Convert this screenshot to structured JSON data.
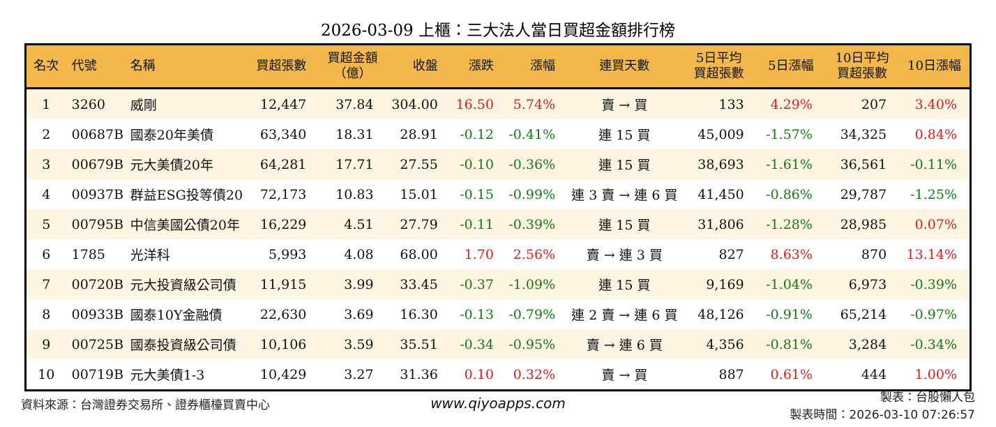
{
  "title": "2026-03-09 上櫃：三大法人當日買超金額排行榜",
  "colors": {
    "header_bg": "#F2B84B",
    "row_alt_bg": "#FDF5E1",
    "up_red": "#D02020",
    "down_green": "#157815",
    "border": "#000000"
  },
  "table": {
    "columns": [
      {
        "key": "rank",
        "label": "名次",
        "align": "center"
      },
      {
        "key": "code",
        "label": "代號",
        "align": "left"
      },
      {
        "key": "name",
        "label": "名稱",
        "align": "left"
      },
      {
        "key": "vol",
        "label": "買超張數",
        "align": "right"
      },
      {
        "key": "amount",
        "label": "買超金額\n（億）",
        "align": "right"
      },
      {
        "key": "close",
        "label": "收盤",
        "align": "right"
      },
      {
        "key": "chg",
        "label": "漲跌",
        "align": "right"
      },
      {
        "key": "chgpct",
        "label": "漲幅",
        "align": "right"
      },
      {
        "key": "streak",
        "label": "連買天數",
        "align": "center"
      },
      {
        "key": "avg5",
        "label": "5日平均\n買超張數",
        "align": "right"
      },
      {
        "key": "pct5",
        "label": "5日漲幅",
        "align": "right"
      },
      {
        "key": "avg10",
        "label": "10日平均\n買超張數",
        "align": "right"
      },
      {
        "key": "pct10",
        "label": "10日漲幅",
        "align": "right"
      }
    ],
    "rows": [
      [
        {
          "t": "1"
        },
        {
          "t": "3260"
        },
        {
          "t": "威剛"
        },
        {
          "t": "12,447"
        },
        {
          "t": "37.84"
        },
        {
          "t": "304.00"
        },
        {
          "t": "16.50",
          "c": "up"
        },
        {
          "t": "5.74%",
          "c": "up"
        },
        {
          "t": "賣 → 買"
        },
        {
          "t": "133"
        },
        {
          "t": "4.29%",
          "c": "up"
        },
        {
          "t": "207"
        },
        {
          "t": "3.40%",
          "c": "up"
        }
      ],
      [
        {
          "t": "2"
        },
        {
          "t": "00687B"
        },
        {
          "t": "國泰20年美債"
        },
        {
          "t": "63,340"
        },
        {
          "t": "18.31"
        },
        {
          "t": "28.91"
        },
        {
          "t": "-0.12",
          "c": "down"
        },
        {
          "t": "-0.41%",
          "c": "down"
        },
        {
          "t": "連 15 買"
        },
        {
          "t": "45,009"
        },
        {
          "t": "-1.57%",
          "c": "down"
        },
        {
          "t": "34,325"
        },
        {
          "t": "0.84%",
          "c": "up"
        }
      ],
      [
        {
          "t": "3"
        },
        {
          "t": "00679B"
        },
        {
          "t": "元大美債20年"
        },
        {
          "t": "64,281"
        },
        {
          "t": "17.71"
        },
        {
          "t": "27.55"
        },
        {
          "t": "-0.10",
          "c": "down"
        },
        {
          "t": "-0.36%",
          "c": "down"
        },
        {
          "t": "連 15 買"
        },
        {
          "t": "38,693"
        },
        {
          "t": "-1.61%",
          "c": "down"
        },
        {
          "t": "36,561"
        },
        {
          "t": "-0.11%",
          "c": "down"
        }
      ],
      [
        {
          "t": "4"
        },
        {
          "t": "00937B"
        },
        {
          "t": "群益ESG投等債20"
        },
        {
          "t": "72,173"
        },
        {
          "t": "10.83"
        },
        {
          "t": "15.01"
        },
        {
          "t": "-0.15",
          "c": "down"
        },
        {
          "t": "-0.99%",
          "c": "down"
        },
        {
          "t": "連 3 賣 → 連 6 買"
        },
        {
          "t": "41,450"
        },
        {
          "t": "-0.86%",
          "c": "down"
        },
        {
          "t": "29,787"
        },
        {
          "t": "-1.25%",
          "c": "down"
        }
      ],
      [
        {
          "t": "5"
        },
        {
          "t": "00795B"
        },
        {
          "t": "中信美國公債20年"
        },
        {
          "t": "16,229"
        },
        {
          "t": "4.51"
        },
        {
          "t": "27.79"
        },
        {
          "t": "-0.11",
          "c": "down"
        },
        {
          "t": "-0.39%",
          "c": "down"
        },
        {
          "t": "連 15 買"
        },
        {
          "t": "31,806"
        },
        {
          "t": "-1.28%",
          "c": "down"
        },
        {
          "t": "28,985"
        },
        {
          "t": "0.07%",
          "c": "up"
        }
      ],
      [
        {
          "t": "6"
        },
        {
          "t": "1785"
        },
        {
          "t": "光洋科"
        },
        {
          "t": "5,993"
        },
        {
          "t": "4.08"
        },
        {
          "t": "68.00"
        },
        {
          "t": "1.70",
          "c": "up"
        },
        {
          "t": "2.56%",
          "c": "up"
        },
        {
          "t": "賣 → 連 3 買"
        },
        {
          "t": "827"
        },
        {
          "t": "8.63%",
          "c": "up"
        },
        {
          "t": "870"
        },
        {
          "t": "13.14%",
          "c": "up"
        }
      ],
      [
        {
          "t": "7"
        },
        {
          "t": "00720B"
        },
        {
          "t": "元大投資級公司債"
        },
        {
          "t": "11,915"
        },
        {
          "t": "3.99"
        },
        {
          "t": "33.45"
        },
        {
          "t": "-0.37",
          "c": "down"
        },
        {
          "t": "-1.09%",
          "c": "down"
        },
        {
          "t": "連 15 買"
        },
        {
          "t": "9,169"
        },
        {
          "t": "-1.04%",
          "c": "down"
        },
        {
          "t": "6,973"
        },
        {
          "t": "-0.39%",
          "c": "down"
        }
      ],
      [
        {
          "t": "8"
        },
        {
          "t": "00933B"
        },
        {
          "t": "國泰10Y金融債"
        },
        {
          "t": "22,630"
        },
        {
          "t": "3.69"
        },
        {
          "t": "16.30"
        },
        {
          "t": "-0.13",
          "c": "down"
        },
        {
          "t": "-0.79%",
          "c": "down"
        },
        {
          "t": "連 2 賣 → 連 6 買"
        },
        {
          "t": "48,126"
        },
        {
          "t": "-0.91%",
          "c": "down"
        },
        {
          "t": "65,214"
        },
        {
          "t": "-0.97%",
          "c": "down"
        }
      ],
      [
        {
          "t": "9"
        },
        {
          "t": "00725B"
        },
        {
          "t": "國泰投資級公司債"
        },
        {
          "t": "10,106"
        },
        {
          "t": "3.59"
        },
        {
          "t": "35.51"
        },
        {
          "t": "-0.34",
          "c": "down"
        },
        {
          "t": "-0.95%",
          "c": "down"
        },
        {
          "t": "賣 → 連 6 買"
        },
        {
          "t": "4,356"
        },
        {
          "t": "-0.81%",
          "c": "down"
        },
        {
          "t": "3,284"
        },
        {
          "t": "-0.34%",
          "c": "down"
        }
      ],
      [
        {
          "t": "10"
        },
        {
          "t": "00719B"
        },
        {
          "t": "元大美債1-3"
        },
        {
          "t": "10,429"
        },
        {
          "t": "3.27"
        },
        {
          "t": "31.36"
        },
        {
          "t": "0.10",
          "c": "up"
        },
        {
          "t": "0.32%",
          "c": "up"
        },
        {
          "t": "賣 → 買"
        },
        {
          "t": "887"
        },
        {
          "t": "0.61%",
          "c": "up"
        },
        {
          "t": "444"
        },
        {
          "t": "1.00%",
          "c": "up"
        }
      ]
    ]
  },
  "footer": {
    "source": "資料來源：台灣證券交易所、證券櫃檯買賣中心",
    "website": "www.qiyoapps.com",
    "made_by": "製表：台股懶人包",
    "made_time_label": "製表時間：",
    "made_time_value": "2026-03-10 07:26:57"
  },
  "chart_data": {
    "type": "table",
    "title": "2026-03-09 上櫃：三大法人當日買超金額排行榜",
    "columns": [
      "名次",
      "代號",
      "名稱",
      "買超張數",
      "買超金額（億）",
      "收盤",
      "漲跌",
      "漲幅",
      "連買天數",
      "5日平均買超張數",
      "5日漲幅",
      "10日平均買超張數",
      "10日漲幅"
    ],
    "rows": [
      [
        1,
        "3260",
        "威剛",
        12447,
        37.84,
        304.0,
        16.5,
        "5.74%",
        "賣 → 買",
        133,
        "4.29%",
        207,
        "3.40%"
      ],
      [
        2,
        "00687B",
        "國泰20年美債",
        63340,
        18.31,
        28.91,
        -0.12,
        "-0.41%",
        "連 15 買",
        45009,
        "-1.57%",
        34325,
        "0.84%"
      ],
      [
        3,
        "00679B",
        "元大美債20年",
        64281,
        17.71,
        27.55,
        -0.1,
        "-0.36%",
        "連 15 買",
        38693,
        "-1.61%",
        36561,
        "-0.11%"
      ],
      [
        4,
        "00937B",
        "群益ESG投等債20",
        72173,
        10.83,
        15.01,
        -0.15,
        "-0.99%",
        "連 3 賣 → 連 6 買",
        41450,
        "-0.86%",
        29787,
        "-1.25%"
      ],
      [
        5,
        "00795B",
        "中信美國公債20年",
        16229,
        4.51,
        27.79,
        -0.11,
        "-0.39%",
        "連 15 買",
        31806,
        "-1.28%",
        28985,
        "0.07%"
      ],
      [
        6,
        "1785",
        "光洋科",
        5993,
        4.08,
        68.0,
        1.7,
        "2.56%",
        "賣 → 連 3 買",
        827,
        "8.63%",
        870,
        "13.14%"
      ],
      [
        7,
        "00720B",
        "元大投資級公司債",
        11915,
        3.99,
        33.45,
        -0.37,
        "-1.09%",
        "連 15 買",
        9169,
        "-1.04%",
        6973,
        "-0.39%"
      ],
      [
        8,
        "00933B",
        "國泰10Y金融債",
        22630,
        3.69,
        16.3,
        -0.13,
        "-0.79%",
        "連 2 賣 → 連 6 買",
        48126,
        "-0.91%",
        65214,
        "-0.97%"
      ],
      [
        9,
        "00725B",
        "國泰投資級公司債",
        10106,
        3.59,
        35.51,
        -0.34,
        "-0.95%",
        "賣 → 連 6 買",
        4356,
        "-0.81%",
        3284,
        "-0.34%"
      ],
      [
        10,
        "00719B",
        "元大美債1-3",
        10429,
        3.27,
        31.36,
        0.1,
        "0.32%",
        "賣 → 買",
        887,
        "0.61%",
        444,
        "1.00%"
      ]
    ],
    "notes": "red = 上漲 (up), green = 下跌 (down)"
  }
}
